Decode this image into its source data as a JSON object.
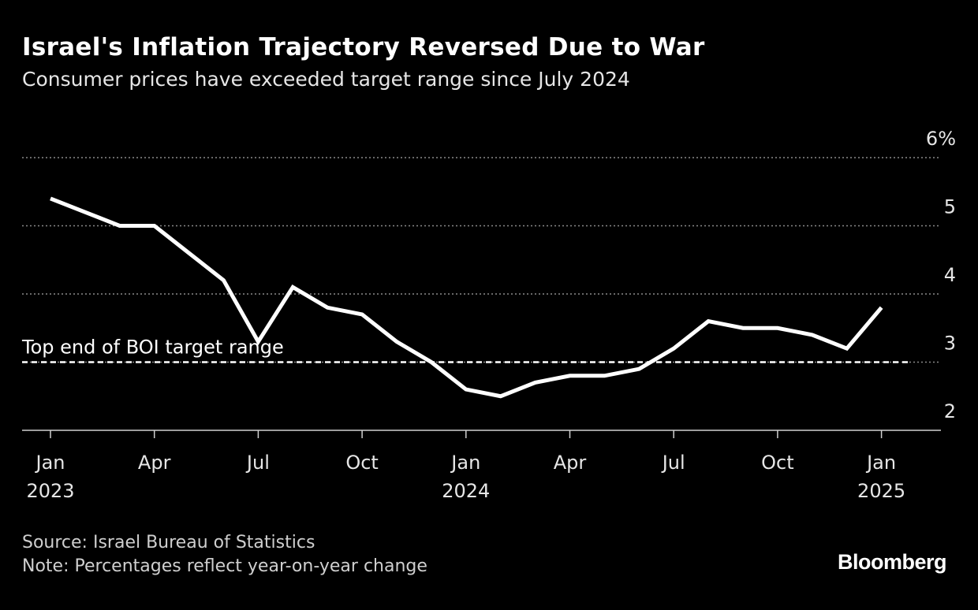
{
  "title": "Israel's Inflation Trajectory Reversed Due to War",
  "subtitle": "Consumer prices have exceeded target range since July 2024",
  "footer": {
    "source": "Source: Israel Bureau of Statistics",
    "note": "Note: Percentages reflect year-on-year change",
    "logo": "Bloomberg"
  },
  "colors": {
    "background": "#000000",
    "line": "#ffffff",
    "grid": "#888888"
  },
  "chart_data": {
    "type": "line",
    "title": "Israel's Inflation Trajectory Reversed Due to War",
    "subtitle": "Consumer prices have exceeded target range since July 2024",
    "ylim": [
      2,
      6
    ],
    "y_ticks": [
      2,
      3,
      4,
      5,
      6
    ],
    "y_tick_labels": [
      "2",
      "3",
      "4",
      "5",
      "6%"
    ],
    "y_axis_side": "right",
    "grid": true,
    "x_ticks": [
      {
        "month": "2023-01",
        "label": "Jan",
        "year": "2023"
      },
      {
        "month": "2023-04",
        "label": "Apr",
        "year": ""
      },
      {
        "month": "2023-07",
        "label": "Jul",
        "year": ""
      },
      {
        "month": "2023-10",
        "label": "Oct",
        "year": ""
      },
      {
        "month": "2024-01",
        "label": "Jan",
        "year": "2024"
      },
      {
        "month": "2024-04",
        "label": "Apr",
        "year": ""
      },
      {
        "month": "2024-07",
        "label": "Jul",
        "year": ""
      },
      {
        "month": "2024-10",
        "label": "Oct",
        "year": ""
      },
      {
        "month": "2025-01",
        "label": "Jan",
        "year": "2025"
      }
    ],
    "x": [
      "2023-01",
      "2023-02",
      "2023-03",
      "2023-04",
      "2023-05",
      "2023-06",
      "2023-07",
      "2023-08",
      "2023-09",
      "2023-10",
      "2023-11",
      "2023-12",
      "2024-01",
      "2024-02",
      "2024-03",
      "2024-04",
      "2024-05",
      "2024-06",
      "2024-07",
      "2024-08",
      "2024-09",
      "2024-10",
      "2024-11",
      "2024-12",
      "2025-01"
    ],
    "values": [
      5.4,
      5.2,
      5.0,
      5.0,
      4.6,
      4.2,
      3.3,
      4.1,
      3.8,
      3.7,
      3.3,
      3.0,
      2.6,
      2.5,
      2.7,
      2.8,
      2.8,
      2.9,
      3.2,
      3.6,
      3.5,
      3.5,
      3.4,
      3.2,
      3.8
    ],
    "reference_line": {
      "value": 3,
      "label": "Top end of BOI target range",
      "style": "dashed"
    }
  }
}
